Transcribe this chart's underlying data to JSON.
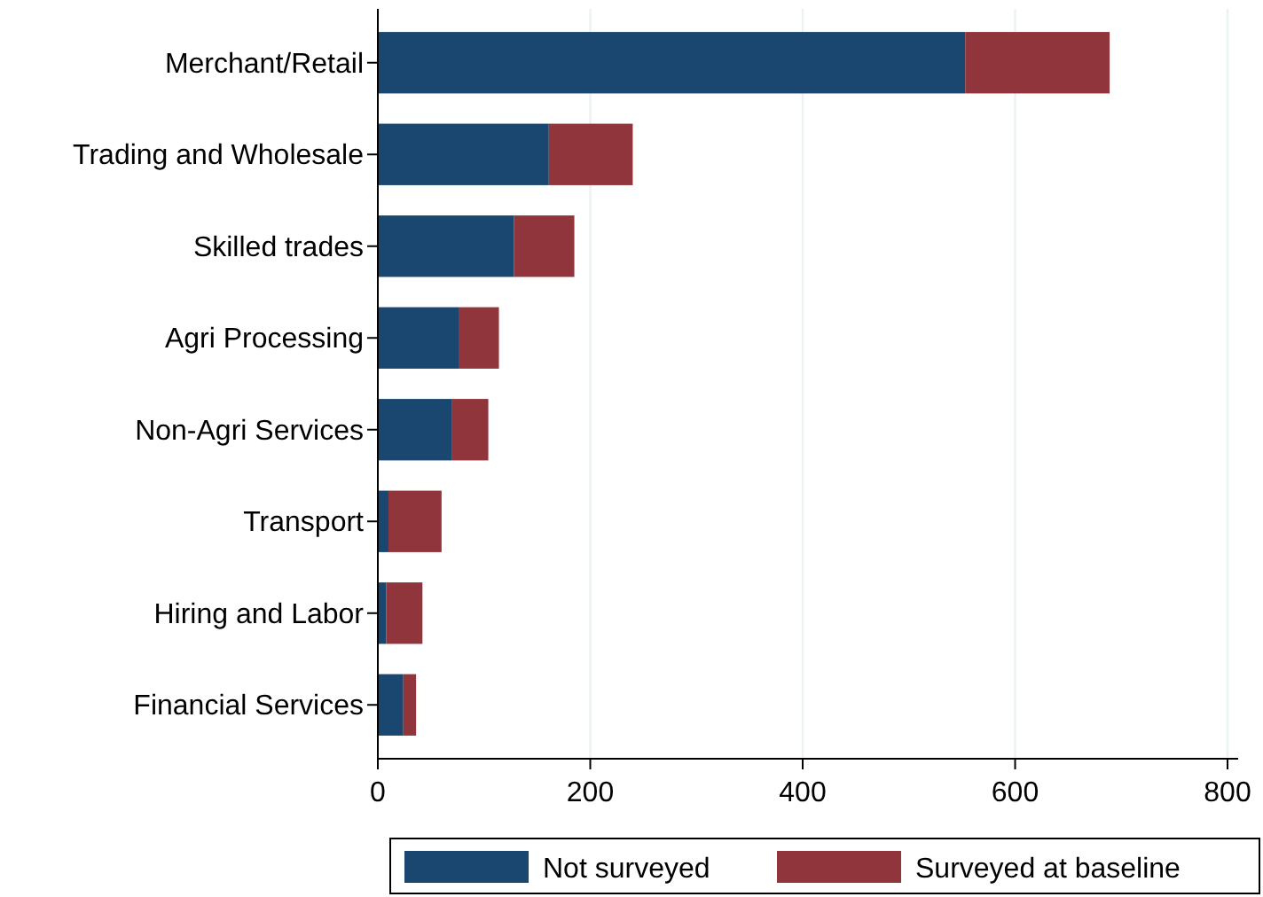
{
  "chart_data": {
    "type": "bar",
    "orientation": "horizontal",
    "stacked": true,
    "categories": [
      "Merchant/Retail",
      "Trading and Wholesale",
      "Skilled trades",
      "Agri Processing",
      "Non-Agri Services",
      "Transport",
      "Hiring and Labor",
      "Financial Services"
    ],
    "series": [
      {
        "name": "Not surveyed",
        "color": "#1a476f",
        "values": [
          553,
          161,
          128,
          76,
          70,
          10,
          8,
          24
        ]
      },
      {
        "name": "Surveyed at baseline",
        "color": "#90353b",
        "values": [
          136,
          79,
          57,
          38,
          34,
          50,
          34,
          12
        ]
      }
    ],
    "xlim": [
      0,
      810
    ],
    "xticks": [
      0,
      200,
      400,
      600,
      800
    ],
    "grid": "x",
    "legend": "bottom"
  }
}
